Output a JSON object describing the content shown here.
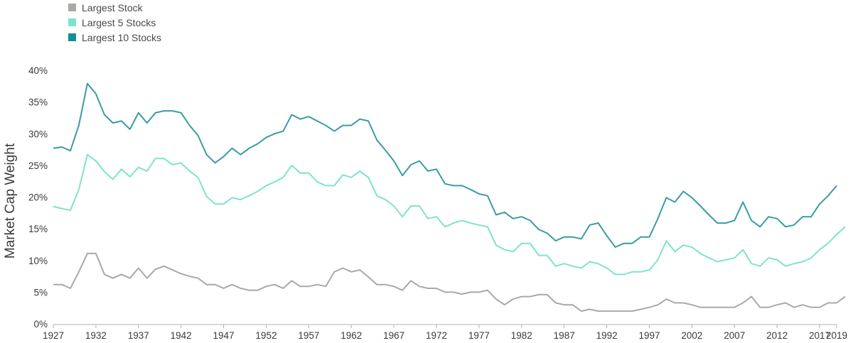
{
  "chart_data": {
    "type": "line",
    "ylabel": "Market Cap Weight",
    "xlabel": "",
    "ylim": [
      0,
      40
    ],
    "xlim": [
      1927,
      2019
    ],
    "y_ticks": [
      "0%",
      "5%",
      "10%",
      "15%",
      "20%",
      "25%",
      "30%",
      "35%",
      "40%"
    ],
    "x_ticks": [
      "1927",
      "1932",
      "1937",
      "1942",
      "1947",
      "1952",
      "1957",
      "1962",
      "1967",
      "1972",
      "1977",
      "1982",
      "1987",
      "1992",
      "1997",
      "2002",
      "2007",
      "2012",
      "2017",
      "2019"
    ],
    "legend": [
      "Largest Stock",
      "Largest 5 Stocks",
      "Largest 10 Stocks"
    ],
    "legend_position": "top-left",
    "grid": false,
    "series": [
      {
        "name": "Largest Stock",
        "color": "#a8aaa6",
        "values": [
          [
            1927,
            6.2
          ],
          [
            1928,
            6.2
          ],
          [
            1929,
            5.6
          ],
          [
            1930,
            8.2
          ],
          [
            1931,
            11.1
          ],
          [
            1932,
            11.1
          ],
          [
            1933,
            7.8
          ],
          [
            1934,
            7.2
          ],
          [
            1935,
            7.8
          ],
          [
            1936,
            7.2
          ],
          [
            1937,
            8.8
          ],
          [
            1938,
            7.2
          ],
          [
            1939,
            8.6
          ],
          [
            1940,
            9.1
          ],
          [
            1941,
            8.5
          ],
          [
            1942,
            7.9
          ],
          [
            1943,
            7.5
          ],
          [
            1944,
            7.2
          ],
          [
            1945,
            6.2
          ],
          [
            1946,
            6.2
          ],
          [
            1947,
            5.6
          ],
          [
            1948,
            6.2
          ],
          [
            1949,
            5.6
          ],
          [
            1950,
            5.3
          ],
          [
            1951,
            5.3
          ],
          [
            1952,
            5.9
          ],
          [
            1953,
            6.2
          ],
          [
            1954,
            5.6
          ],
          [
            1955,
            6.8
          ],
          [
            1956,
            5.9
          ],
          [
            1957,
            5.9
          ],
          [
            1958,
            6.2
          ],
          [
            1959,
            5.9
          ],
          [
            1960,
            8.2
          ],
          [
            1961,
            8.8
          ],
          [
            1962,
            8.2
          ],
          [
            1963,
            8.5
          ],
          [
            1964,
            7.4
          ],
          [
            1965,
            6.2
          ],
          [
            1966,
            6.2
          ],
          [
            1967,
            5.9
          ],
          [
            1968,
            5.3
          ],
          [
            1969,
            6.8
          ],
          [
            1970,
            5.9
          ],
          [
            1971,
            5.6
          ],
          [
            1972,
            5.6
          ],
          [
            1973,
            5.0
          ],
          [
            1974,
            5.0
          ],
          [
            1975,
            4.7
          ],
          [
            1976,
            5.0
          ],
          [
            1977,
            5.0
          ],
          [
            1978,
            5.3
          ],
          [
            1979,
            3.9
          ],
          [
            1980,
            3.0
          ],
          [
            1981,
            3.9
          ],
          [
            1982,
            4.3
          ],
          [
            1983,
            4.3
          ],
          [
            1984,
            4.6
          ],
          [
            1985,
            4.6
          ],
          [
            1986,
            3.3
          ],
          [
            1987,
            3.0
          ],
          [
            1988,
            3.0
          ],
          [
            1989,
            2.0
          ],
          [
            1990,
            2.3
          ],
          [
            1991,
            2.0
          ],
          [
            1992,
            2.0
          ],
          [
            1993,
            2.0
          ],
          [
            1994,
            2.0
          ],
          [
            1995,
            2.0
          ],
          [
            1996,
            2.3
          ],
          [
            1997,
            2.6
          ],
          [
            1998,
            3.0
          ],
          [
            1999,
            3.9
          ],
          [
            2000,
            3.3
          ],
          [
            2001,
            3.3
          ],
          [
            2002,
            3.0
          ],
          [
            2003,
            2.6
          ],
          [
            2004,
            2.6
          ],
          [
            2005,
            2.6
          ],
          [
            2006,
            2.6
          ],
          [
            2007,
            2.6
          ],
          [
            2008,
            3.3
          ],
          [
            2009,
            4.3
          ],
          [
            2010,
            2.6
          ],
          [
            2011,
            2.6
          ],
          [
            2012,
            3.0
          ],
          [
            2013,
            3.3
          ],
          [
            2014,
            2.6
          ],
          [
            2015,
            3.0
          ],
          [
            2016,
            2.6
          ],
          [
            2017,
            2.6
          ],
          [
            2018,
            3.3
          ],
          [
            2019,
            3.3
          ],
          [
            2020,
            4.3
          ]
        ]
      },
      {
        "name": "Largest 5 Stocks",
        "color": "#7ee3cd",
        "values": [
          [
            1927,
            18.5
          ],
          [
            1928,
            18.2
          ],
          [
            1929,
            17.9
          ],
          [
            1930,
            21.2
          ],
          [
            1931,
            26.7
          ],
          [
            1932,
            25.7
          ],
          [
            1933,
            24.0
          ],
          [
            1934,
            22.8
          ],
          [
            1935,
            24.4
          ],
          [
            1936,
            23.2
          ],
          [
            1937,
            24.7
          ],
          [
            1938,
            24.1
          ],
          [
            1939,
            26.1
          ],
          [
            1940,
            26.1
          ],
          [
            1941,
            25.1
          ],
          [
            1942,
            25.4
          ],
          [
            1943,
            24.1
          ],
          [
            1944,
            23.1
          ],
          [
            1945,
            20.1
          ],
          [
            1946,
            18.9
          ],
          [
            1947,
            18.9
          ],
          [
            1948,
            19.9
          ],
          [
            1949,
            19.6
          ],
          [
            1950,
            20.2
          ],
          [
            1951,
            20.9
          ],
          [
            1952,
            21.8
          ],
          [
            1953,
            22.4
          ],
          [
            1954,
            23.1
          ],
          [
            1955,
            25.0
          ],
          [
            1956,
            23.8
          ],
          [
            1957,
            23.8
          ],
          [
            1958,
            22.4
          ],
          [
            1959,
            21.8
          ],
          [
            1960,
            21.8
          ],
          [
            1961,
            23.5
          ],
          [
            1962,
            23.1
          ],
          [
            1963,
            24.1
          ],
          [
            1964,
            23.1
          ],
          [
            1965,
            20.2
          ],
          [
            1966,
            19.6
          ],
          [
            1967,
            18.6
          ],
          [
            1968,
            16.9
          ],
          [
            1969,
            18.6
          ],
          [
            1970,
            18.6
          ],
          [
            1971,
            16.6
          ],
          [
            1972,
            16.9
          ],
          [
            1973,
            15.3
          ],
          [
            1974,
            15.9
          ],
          [
            1975,
            16.3
          ],
          [
            1976,
            15.9
          ],
          [
            1977,
            15.6
          ],
          [
            1978,
            15.3
          ],
          [
            1979,
            12.4
          ],
          [
            1980,
            11.7
          ],
          [
            1981,
            11.4
          ],
          [
            1982,
            12.7
          ],
          [
            1983,
            12.7
          ],
          [
            1984,
            10.8
          ],
          [
            1985,
            10.8
          ],
          [
            1986,
            9.1
          ],
          [
            1987,
            9.5
          ],
          [
            1988,
            9.1
          ],
          [
            1989,
            8.8
          ],
          [
            1990,
            9.8
          ],
          [
            1991,
            9.5
          ],
          [
            1992,
            8.8
          ],
          [
            1993,
            7.8
          ],
          [
            1994,
            7.8
          ],
          [
            1995,
            8.2
          ],
          [
            1996,
            8.2
          ],
          [
            1997,
            8.5
          ],
          [
            1998,
            10.1
          ],
          [
            1999,
            13.1
          ],
          [
            2000,
            11.4
          ],
          [
            2001,
            12.4
          ],
          [
            2002,
            12.1
          ],
          [
            2003,
            11.1
          ],
          [
            2004,
            10.4
          ],
          [
            2005,
            9.8
          ],
          [
            2006,
            10.1
          ],
          [
            2007,
            10.4
          ],
          [
            2008,
            11.7
          ],
          [
            2009,
            9.5
          ],
          [
            2010,
            9.1
          ],
          [
            2011,
            10.4
          ],
          [
            2012,
            10.1
          ],
          [
            2013,
            9.1
          ],
          [
            2014,
            9.5
          ],
          [
            2015,
            9.8
          ],
          [
            2016,
            10.4
          ],
          [
            2017,
            11.7
          ],
          [
            2018,
            12.7
          ],
          [
            2019,
            14.1
          ],
          [
            2020,
            15.3
          ]
        ]
      },
      {
        "name": "Largest 10 Stocks",
        "color": "#3a9ca3",
        "values": [
          [
            1927,
            27.7
          ],
          [
            1928,
            27.9
          ],
          [
            1929,
            27.3
          ],
          [
            1930,
            31.3
          ],
          [
            1931,
            37.9
          ],
          [
            1932,
            36.3
          ],
          [
            1933,
            33.0
          ],
          [
            1934,
            31.7
          ],
          [
            1935,
            32.0
          ],
          [
            1936,
            30.7
          ],
          [
            1937,
            33.3
          ],
          [
            1938,
            31.7
          ],
          [
            1939,
            33.3
          ],
          [
            1940,
            33.6
          ],
          [
            1941,
            33.6
          ],
          [
            1942,
            33.3
          ],
          [
            1943,
            31.3
          ],
          [
            1944,
            29.7
          ],
          [
            1945,
            26.7
          ],
          [
            1946,
            25.4
          ],
          [
            1947,
            26.4
          ],
          [
            1948,
            27.7
          ],
          [
            1949,
            26.7
          ],
          [
            1950,
            27.7
          ],
          [
            1951,
            28.4
          ],
          [
            1952,
            29.4
          ],
          [
            1953,
            30.0
          ],
          [
            1954,
            30.4
          ],
          [
            1955,
            33.0
          ],
          [
            1956,
            32.3
          ],
          [
            1957,
            32.7
          ],
          [
            1958,
            32.0
          ],
          [
            1959,
            31.3
          ],
          [
            1960,
            30.4
          ],
          [
            1961,
            31.3
          ],
          [
            1962,
            31.3
          ],
          [
            1963,
            32.3
          ],
          [
            1964,
            32.0
          ],
          [
            1965,
            29.0
          ],
          [
            1966,
            27.4
          ],
          [
            1967,
            25.7
          ],
          [
            1968,
            23.4
          ],
          [
            1969,
            25.1
          ],
          [
            1970,
            25.7
          ],
          [
            1971,
            24.1
          ],
          [
            1972,
            24.4
          ],
          [
            1973,
            22.1
          ],
          [
            1974,
            21.8
          ],
          [
            1975,
            21.8
          ],
          [
            1976,
            21.2
          ],
          [
            1977,
            20.5
          ],
          [
            1978,
            20.2
          ],
          [
            1979,
            17.2
          ],
          [
            1980,
            17.6
          ],
          [
            1981,
            16.6
          ],
          [
            1982,
            16.9
          ],
          [
            1983,
            16.3
          ],
          [
            1984,
            14.9
          ],
          [
            1985,
            14.3
          ],
          [
            1986,
            13.1
          ],
          [
            1987,
            13.7
          ],
          [
            1988,
            13.7
          ],
          [
            1989,
            13.4
          ],
          [
            1990,
            15.6
          ],
          [
            1991,
            15.9
          ],
          [
            1992,
            13.9
          ],
          [
            1993,
            12.1
          ],
          [
            1994,
            12.7
          ],
          [
            1995,
            12.7
          ],
          [
            1996,
            13.7
          ],
          [
            1997,
            13.7
          ],
          [
            1998,
            16.6
          ],
          [
            1999,
            19.9
          ],
          [
            2000,
            19.2
          ],
          [
            2001,
            20.9
          ],
          [
            2002,
            19.9
          ],
          [
            2003,
            18.6
          ],
          [
            2004,
            17.2
          ],
          [
            2005,
            15.9
          ],
          [
            2006,
            15.9
          ],
          [
            2007,
            16.3
          ],
          [
            2008,
            19.2
          ],
          [
            2009,
            16.3
          ],
          [
            2010,
            15.3
          ],
          [
            2011,
            16.9
          ],
          [
            2012,
            16.6
          ],
          [
            2013,
            15.3
          ],
          [
            2014,
            15.6
          ],
          [
            2015,
            16.9
          ],
          [
            2016,
            16.9
          ],
          [
            2017,
            18.9
          ],
          [
            2018,
            20.2
          ],
          [
            2019,
            21.8
          ]
        ]
      }
    ]
  }
}
